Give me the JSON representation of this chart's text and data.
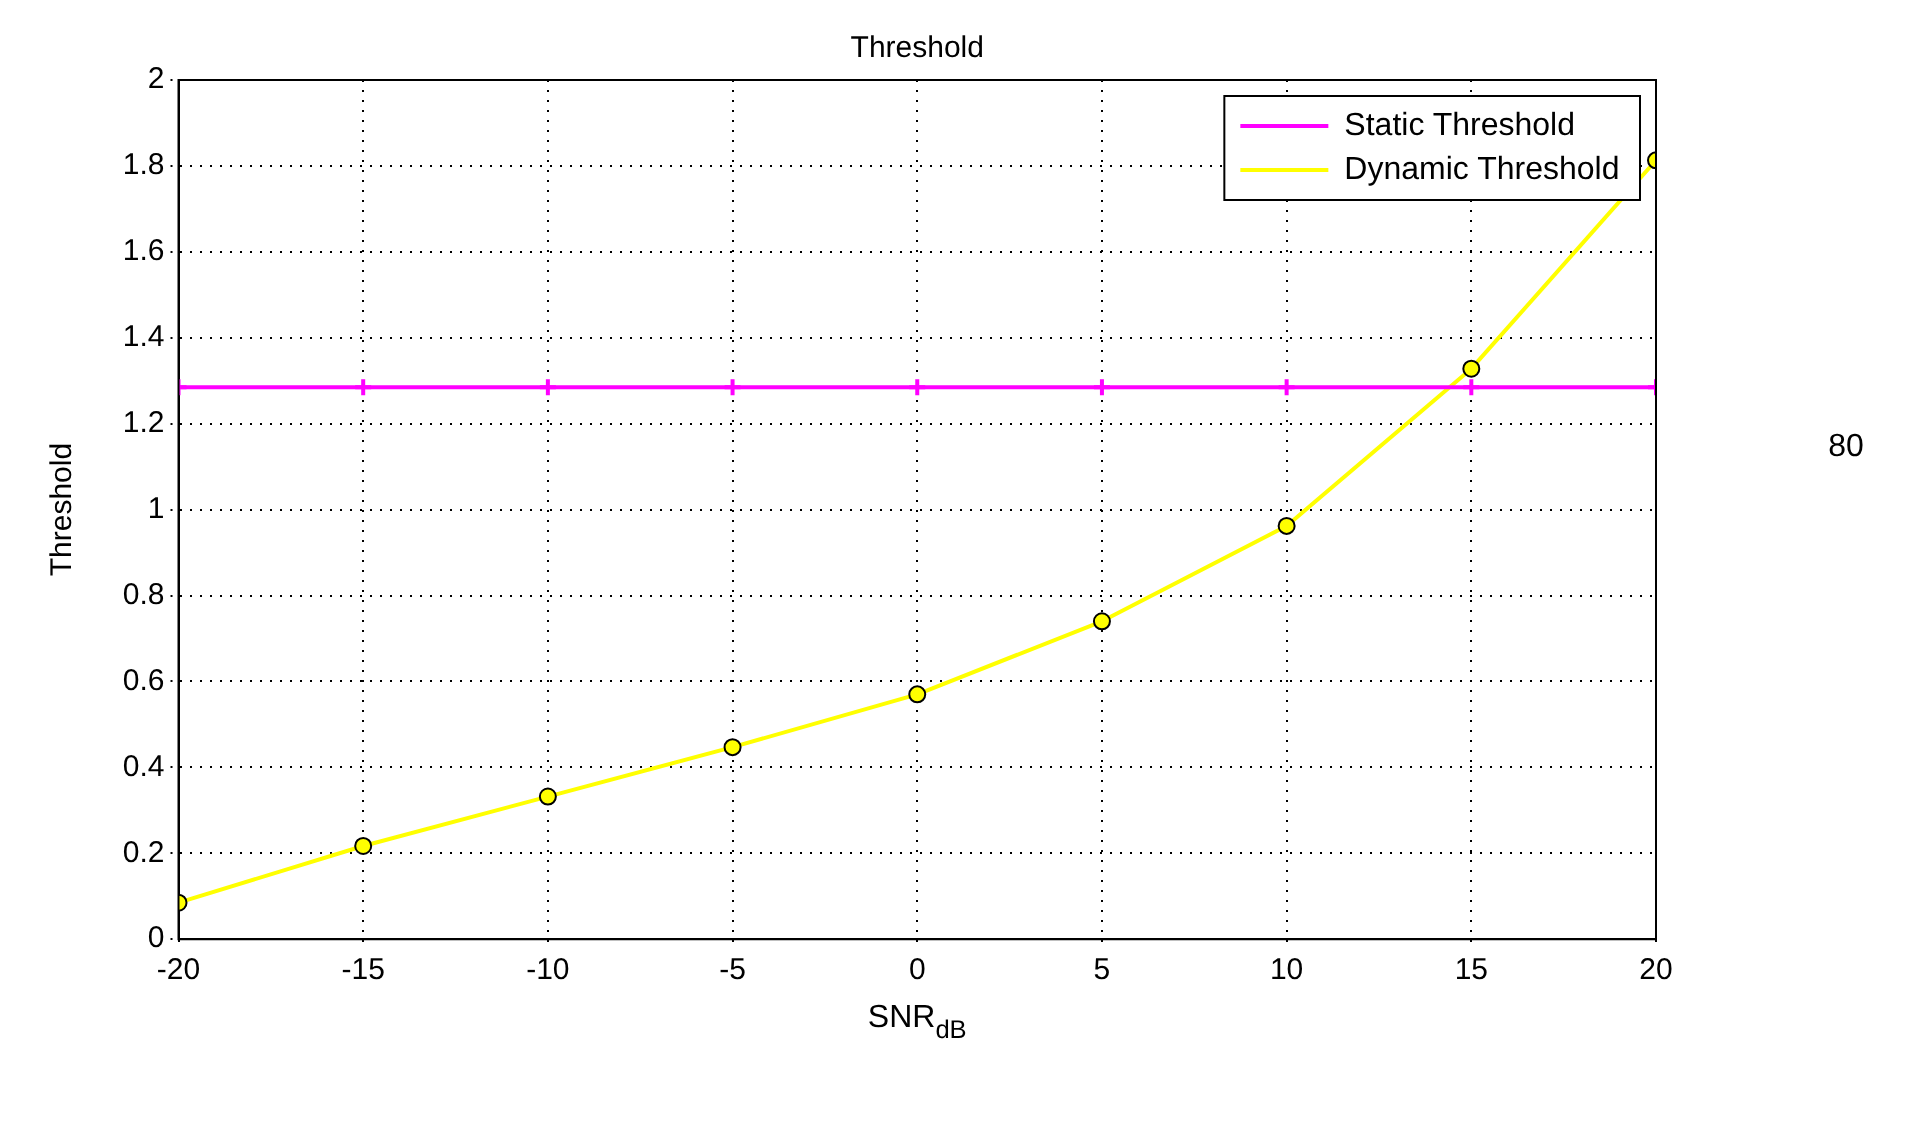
{
  "chart_data": {
    "type": "line",
    "title": "Threshold",
    "xlabel": "SNR$_{dB}$",
    "ylabel": "Threshold",
    "x": [
      -20,
      -15,
      -10,
      -5,
      0,
      5,
      10,
      15,
      20
    ],
    "series": [
      {
        "name": "Static Threshold",
        "color": "#ff00ff",
        "marker": "cross",
        "values": [
          1.285,
          1.285,
          1.285,
          1.285,
          1.285,
          1.285,
          1.285,
          1.285,
          1.285
        ]
      },
      {
        "name": "Dynamic Threshold",
        "color": "#ffff00",
        "marker": "circle",
        "values": [
          0.085,
          0.217,
          0.332,
          0.447,
          0.57,
          0.74,
          0.962,
          1.328,
          1.813
        ]
      }
    ],
    "xlim": [
      -20,
      20
    ],
    "xticks": [
      -20,
      -15,
      -10,
      -5,
      0,
      5,
      10,
      15,
      20
    ],
    "ylim": [
      0,
      2
    ],
    "yticks": [
      0,
      0.2,
      0.4,
      0.6,
      0.8,
      1,
      1.2,
      1.4,
      1.6,
      1.8,
      2
    ],
    "grid": true,
    "line_style": "solid",
    "legend": "top right",
    "annotations": [
      "80"
    ]
  }
}
